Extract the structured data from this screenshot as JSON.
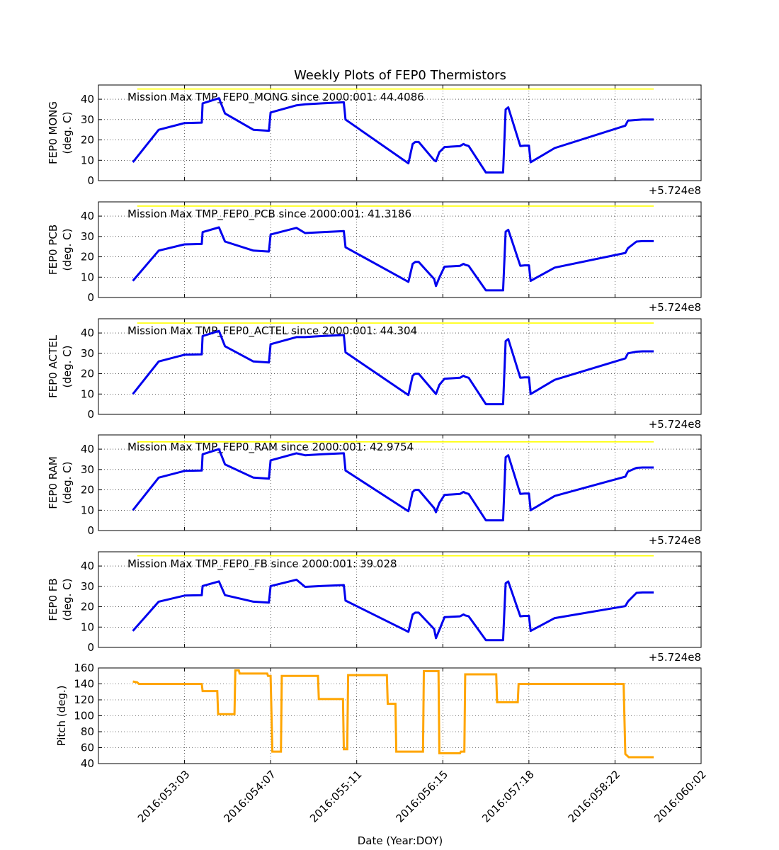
{
  "figure": {
    "title": "Weekly Plots of FEP0 Thermistors",
    "xlabel": "Date (Year:DOY)",
    "offset_label": "+5.724e8",
    "colors": {
      "temperature": "#0000ee",
      "mission_max": "#ffff00",
      "pitch": "#ffa500"
    }
  },
  "chart_data": [
    {
      "type": "line",
      "ylabel_lines": [
        "FEP0 MONG",
        "(deg. C)"
      ],
      "annotation": "Mission Max TMP_FEP0_MONG since 2000:001: 44.4086",
      "mission_max": 44.4086,
      "ylim": [
        0,
        47
      ],
      "yticks": [
        0,
        10,
        20,
        30,
        40
      ],
      "xlim": [
        0,
        7
      ],
      "x": [
        0.4,
        0.7,
        1.0,
        1.2,
        1.21,
        1.4,
        1.47,
        1.8,
        1.98,
        2.0,
        2.3,
        2.4,
        2.6,
        2.85,
        2.87,
        3.6,
        3.65,
        3.68,
        3.72,
        3.9,
        3.92,
        3.96,
        4.02,
        4.2,
        4.24,
        4.26,
        4.3,
        4.5,
        4.7,
        4.73,
        4.76,
        4.9,
        4.95,
        5.0,
        5.02,
        5.3,
        6.12,
        6.15,
        6.25,
        6.32,
        6.45
      ],
      "y": [
        9,
        25,
        28.3,
        28.5,
        38,
        40.5,
        33,
        25,
        24.5,
        33.5,
        37,
        37.5,
        38,
        38.5,
        30,
        8.5,
        18,
        19,
        19,
        10,
        9.5,
        14,
        16.5,
        17,
        18,
        17.5,
        17,
        4,
        4,
        35,
        36,
        17,
        17.2,
        17.2,
        9,
        16,
        27,
        29.5,
        29.8,
        30,
        30
      ]
    },
    {
      "type": "line",
      "ylabel_lines": [
        "FEP0 PCB",
        "(deg. C)"
      ],
      "annotation": "Mission Max TMP_FEP0_PCB since 2000:001: 41.3186",
      "mission_max": 41.3186,
      "ylim": [
        0,
        47
      ],
      "yticks": [
        0,
        10,
        20,
        30,
        40
      ],
      "xlim": [
        0,
        7
      ]
    },
    {
      "type": "line",
      "ylabel_lines": [
        "FEP0 ACTEL",
        "(deg. C)"
      ],
      "annotation": "Mission Max TMP_FEP0_ACTEL since 2000:001: 44.304",
      "mission_max": 44.304,
      "ylim": [
        0,
        47
      ],
      "yticks": [
        0,
        10,
        20,
        30,
        40
      ],
      "xlim": [
        0,
        7
      ]
    },
    {
      "type": "line",
      "ylabel_lines": [
        "FEP0 RAM",
        "(deg. C)"
      ],
      "annotation": "Mission Max TMP_FEP0_RAM since 2000:001: 42.9754",
      "mission_max": 42.9754,
      "ylim": [
        0,
        47
      ],
      "yticks": [
        0,
        10,
        20,
        30,
        40
      ],
      "xlim": [
        0,
        7
      ]
    },
    {
      "type": "line",
      "ylabel_lines": [
        "FEP0 FB",
        "(deg. C)"
      ],
      "annotation": "Mission Max TMP_FEP0_FB since 2000:001: 39.028",
      "mission_max": 39.028,
      "ylim": [
        0,
        47
      ],
      "yticks": [
        0,
        10,
        20,
        30,
        40
      ],
      "xlim": [
        0,
        7
      ]
    },
    {
      "type": "line",
      "ylabel_lines": [
        "Pitch (deg.)"
      ],
      "ylim": [
        40,
        160
      ],
      "yticks": [
        40,
        60,
        80,
        100,
        120,
        140,
        160
      ],
      "xlim": [
        0,
        7
      ],
      "xticks": [
        1,
        2,
        3,
        4,
        5,
        6,
        7
      ],
      "xtick_labels": [
        "2016:053:03",
        "2016:054:07",
        "2016:055:11",
        "2016:056:15",
        "2016:057:18",
        "2016:058:22",
        "2016:060:02"
      ]
    }
  ]
}
